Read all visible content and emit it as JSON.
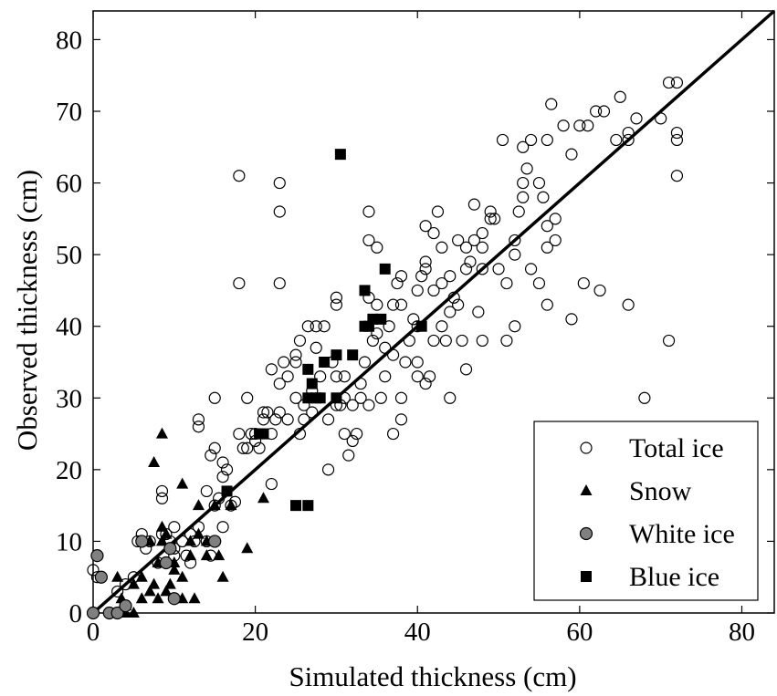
{
  "chart_data": {
    "type": "scatter",
    "title": "",
    "xlabel": "Simulated thickness (cm)",
    "ylabel": "Observed thickness (cm)",
    "xlim": [
      0,
      84
    ],
    "ylim": [
      0,
      84
    ],
    "xticks": [
      "0",
      "20",
      "40",
      "60",
      "80"
    ],
    "yticks": [
      "0",
      "10",
      "20",
      "30",
      "40",
      "50",
      "60",
      "70",
      "80"
    ],
    "grid": false,
    "legend_position": "bottom-right",
    "reference_line": {
      "from": [
        0,
        0
      ],
      "to": [
        84,
        84
      ]
    },
    "series": [
      {
        "name": "Total ice",
        "marker": "open-circle",
        "color": "#000000",
        "points": [
          [
            0,
            6
          ],
          [
            0.5,
            8
          ],
          [
            0.5,
            5
          ],
          [
            3,
            3
          ],
          [
            4,
            4
          ],
          [
            5,
            5
          ],
          [
            5.5,
            10
          ],
          [
            6,
            11
          ],
          [
            6.5,
            9
          ],
          [
            7,
            10
          ],
          [
            8,
            7
          ],
          [
            8.5,
            11
          ],
          [
            9,
            11
          ],
          [
            9.5,
            10
          ],
          [
            10,
            8
          ],
          [
            10,
            12
          ],
          [
            11,
            10
          ],
          [
            11.5,
            8
          ],
          [
            12,
            11
          ],
          [
            12,
            7
          ],
          [
            12.5,
            10
          ],
          [
            13,
            12
          ],
          [
            14,
            10
          ],
          [
            14.5,
            8
          ],
          [
            15,
            10
          ],
          [
            16,
            12
          ],
          [
            8.5,
            16
          ],
          [
            8.5,
            17
          ],
          [
            10,
            9
          ],
          [
            13,
            26
          ],
          [
            13,
            27
          ],
          [
            14,
            17
          ],
          [
            14.5,
            22
          ],
          [
            15,
            23
          ],
          [
            15,
            30
          ],
          [
            15,
            15
          ],
          [
            15.5,
            16
          ],
          [
            16,
            19
          ],
          [
            16,
            21
          ],
          [
            16.5,
            20
          ],
          [
            17,
            15
          ],
          [
            17.5,
            15.5
          ],
          [
            18,
            25
          ],
          [
            18.5,
            23
          ],
          [
            19,
            23
          ],
          [
            19,
            30
          ],
          [
            19.5,
            25
          ],
          [
            20,
            25
          ],
          [
            20,
            24
          ],
          [
            20.5,
            23
          ],
          [
            21,
            27
          ],
          [
            21,
            28
          ],
          [
            21.5,
            28
          ],
          [
            22,
            18
          ],
          [
            22,
            25
          ],
          [
            22,
            34
          ],
          [
            22.5,
            27
          ],
          [
            23,
            28
          ],
          [
            23,
            32
          ],
          [
            23.5,
            35
          ],
          [
            24,
            33
          ],
          [
            24,
            27
          ],
          [
            25,
            30
          ],
          [
            25,
            35
          ],
          [
            25,
            36
          ],
          [
            25.5,
            25
          ],
          [
            25.5,
            38
          ],
          [
            26,
            27
          ],
          [
            26,
            29
          ],
          [
            26.5,
            40
          ],
          [
            27,
            28
          ],
          [
            27,
            31
          ],
          [
            27.5,
            37
          ],
          [
            27.5,
            40
          ],
          [
            28,
            33
          ],
          [
            28.5,
            40
          ],
          [
            29,
            20
          ],
          [
            29,
            27
          ],
          [
            29.5,
            35
          ],
          [
            30,
            29
          ],
          [
            30,
            33
          ],
          [
            30,
            43
          ],
          [
            30,
            44
          ],
          [
            30.5,
            29
          ],
          [
            31,
            25
          ],
          [
            31,
            30
          ],
          [
            31,
            33
          ],
          [
            31.5,
            22
          ],
          [
            32,
            24
          ],
          [
            32,
            29
          ],
          [
            32.5,
            25
          ],
          [
            33,
            30
          ],
          [
            33,
            32
          ],
          [
            33.5,
            35
          ],
          [
            34,
            29
          ],
          [
            34,
            44
          ],
          [
            34.5,
            38
          ],
          [
            35,
            43
          ],
          [
            35,
            51
          ],
          [
            35,
            39
          ],
          [
            35.5,
            30
          ],
          [
            36,
            33
          ],
          [
            36,
            37
          ],
          [
            36.5,
            40
          ],
          [
            37,
            25
          ],
          [
            37,
            36
          ],
          [
            37,
            43
          ],
          [
            37.5,
            46
          ],
          [
            38,
            30
          ],
          [
            38,
            27
          ],
          [
            38,
            43
          ],
          [
            38,
            47
          ],
          [
            38.5,
            35
          ],
          [
            39,
            38
          ],
          [
            39.5,
            41
          ],
          [
            40,
            33
          ],
          [
            40,
            35
          ],
          [
            40,
            40
          ],
          [
            40,
            45
          ],
          [
            40.5,
            47
          ],
          [
            41,
            48
          ],
          [
            41,
            49
          ],
          [
            41,
            54
          ],
          [
            41,
            32
          ],
          [
            41.5,
            33
          ],
          [
            42,
            38
          ],
          [
            42,
            45
          ],
          [
            42,
            53
          ],
          [
            42.5,
            56
          ],
          [
            43,
            51
          ],
          [
            43,
            46
          ],
          [
            43,
            40
          ],
          [
            43.5,
            38
          ],
          [
            44,
            30
          ],
          [
            44,
            42
          ],
          [
            44,
            47
          ],
          [
            44.5,
            44
          ],
          [
            45,
            52
          ],
          [
            45,
            43
          ],
          [
            45.5,
            38
          ],
          [
            46,
            51
          ],
          [
            46,
            48
          ],
          [
            46,
            34
          ],
          [
            46.5,
            49
          ],
          [
            47,
            52
          ],
          [
            47,
            57
          ],
          [
            47.5,
            42
          ],
          [
            48,
            48
          ],
          [
            48,
            53
          ],
          [
            48,
            38
          ],
          [
            48,
            51
          ],
          [
            49,
            56
          ],
          [
            49,
            55
          ],
          [
            49.5,
            55
          ],
          [
            50,
            48
          ],
          [
            50.5,
            66
          ],
          [
            51,
            38
          ],
          [
            51,
            46
          ],
          [
            52,
            40
          ],
          [
            52,
            50
          ],
          [
            52,
            52
          ],
          [
            52.5,
            56
          ],
          [
            53,
            58
          ],
          [
            53,
            60
          ],
          [
            53,
            65
          ],
          [
            53.5,
            62
          ],
          [
            54,
            48
          ],
          [
            54,
            66
          ],
          [
            55,
            60
          ],
          [
            55,
            46
          ],
          [
            55.5,
            58
          ],
          [
            56,
            43
          ],
          [
            56,
            51
          ],
          [
            56,
            54
          ],
          [
            56,
            66
          ],
          [
            56.5,
            71
          ],
          [
            57,
            52
          ],
          [
            57,
            55
          ],
          [
            58,
            68
          ],
          [
            59,
            64
          ],
          [
            59,
            41
          ],
          [
            60,
            68
          ],
          [
            60.5,
            46
          ],
          [
            61,
            68
          ],
          [
            62,
            70
          ],
          [
            62.5,
            45
          ],
          [
            63,
            70
          ],
          [
            64.5,
            66
          ],
          [
            65,
            72
          ],
          [
            66,
            67
          ],
          [
            66,
            66
          ],
          [
            66,
            43
          ],
          [
            67,
            69
          ],
          [
            68,
            30
          ],
          [
            70,
            69
          ],
          [
            71,
            38
          ],
          [
            71,
            74
          ],
          [
            72,
            74
          ],
          [
            72,
            67
          ],
          [
            72,
            66
          ],
          [
            72,
            61
          ],
          [
            18,
            61
          ],
          [
            18,
            46
          ],
          [
            23,
            60
          ],
          [
            23,
            56
          ],
          [
            23,
            46
          ],
          [
            34,
            52
          ],
          [
            34,
            56
          ]
        ]
      },
      {
        "name": "Snow",
        "marker": "filled-triangle",
        "color": "#000000",
        "points": [
          [
            3,
            5
          ],
          [
            3.5,
            2
          ],
          [
            4,
            0
          ],
          [
            4,
            1
          ],
          [
            5,
            0
          ],
          [
            5,
            4
          ],
          [
            6,
            2
          ],
          [
            6,
            5
          ],
          [
            7,
            3
          ],
          [
            7,
            10
          ],
          [
            7.5,
            4
          ],
          [
            7.5,
            21
          ],
          [
            8,
            2
          ],
          [
            8,
            7
          ],
          [
            8.5,
            10
          ],
          [
            8.5,
            12
          ],
          [
            8.5,
            25
          ],
          [
            9,
            3
          ],
          [
            9,
            11
          ],
          [
            9.5,
            4
          ],
          [
            10,
            6
          ],
          [
            10,
            7
          ],
          [
            11,
            2
          ],
          [
            11,
            5
          ],
          [
            11,
            18
          ],
          [
            12,
            8
          ],
          [
            12,
            10
          ],
          [
            12.5,
            2
          ],
          [
            13,
            11
          ],
          [
            13,
            15
          ],
          [
            14,
            8
          ],
          [
            14,
            10
          ],
          [
            15,
            15
          ],
          [
            15.5,
            8
          ],
          [
            16,
            5
          ],
          [
            17,
            15
          ],
          [
            19,
            9
          ],
          [
            21,
            16
          ]
        ]
      },
      {
        "name": "White ice",
        "marker": "filled-circle",
        "color": "#808080",
        "points": [
          [
            0,
            0
          ],
          [
            0.5,
            8
          ],
          [
            1,
            5
          ],
          [
            2,
            0
          ],
          [
            3,
            0
          ],
          [
            4,
            1
          ],
          [
            6,
            10
          ],
          [
            9,
            7
          ],
          [
            9.5,
            9
          ],
          [
            10,
            2
          ],
          [
            15,
            10
          ]
        ]
      },
      {
        "name": "Blue ice",
        "marker": "filled-square",
        "color": "#000000",
        "points": [
          [
            16.5,
            17
          ],
          [
            20.5,
            25
          ],
          [
            21,
            25
          ],
          [
            25,
            15
          ],
          [
            26.5,
            15
          ],
          [
            26.5,
            30
          ],
          [
            26.5,
            34
          ],
          [
            27,
            32
          ],
          [
            27.5,
            30
          ],
          [
            28,
            30
          ],
          [
            28.5,
            35
          ],
          [
            30,
            30
          ],
          [
            30,
            36
          ],
          [
            30.5,
            64
          ],
          [
            32,
            36
          ],
          [
            33.5,
            40
          ],
          [
            33.5,
            45
          ],
          [
            34,
            40
          ],
          [
            34.5,
            41
          ],
          [
            35.5,
            41
          ],
          [
            36,
            48
          ],
          [
            40.5,
            40
          ]
        ]
      }
    ]
  }
}
